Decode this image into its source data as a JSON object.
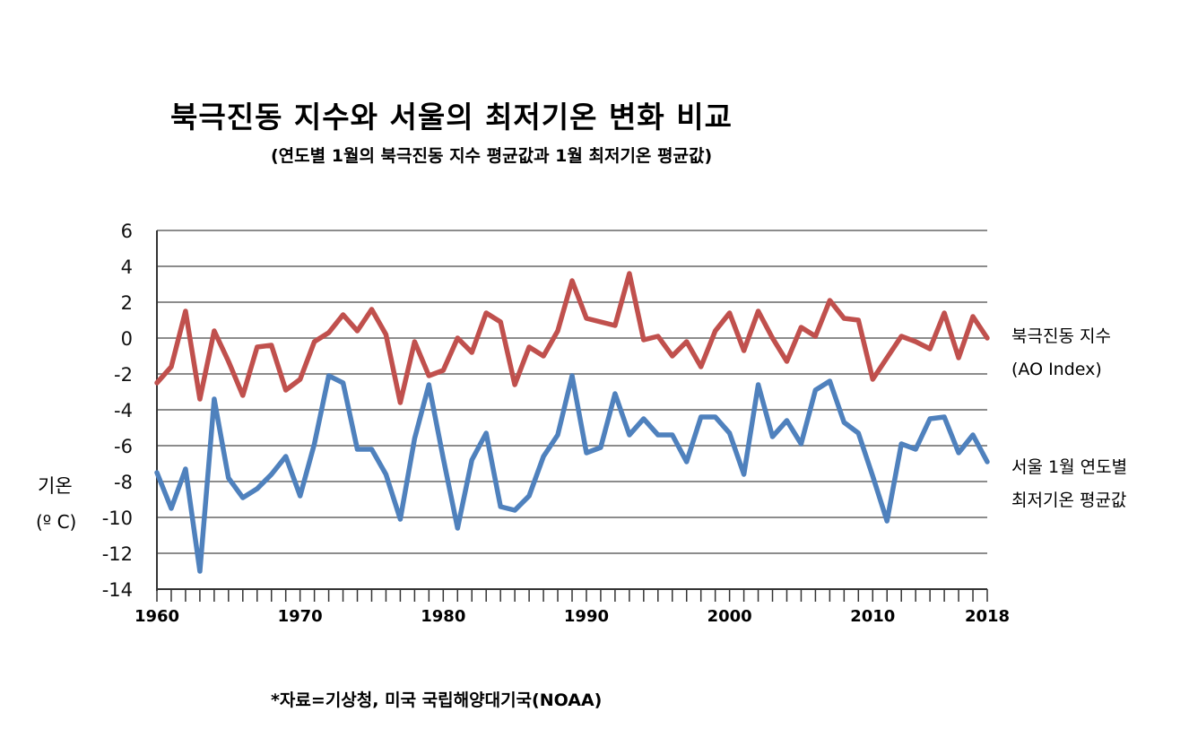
{
  "title": "북극진동 지수와 서울의 최저기온 변화 비교",
  "subtitle": "(연도별 1월의 북극진동 지수 평균값과 1월 최저기온 평균값)",
  "source": "*자료=기상청,  미국 국립해양대기국(NOAA)",
  "chart_data": {
    "type": "line",
    "title": "북극진동 지수와 서울의 최저기온 변화 비교",
    "subtitle": "(연도별 1월의 북극진동 지수 평균값과 1월 최저기온 평균값)",
    "ylabel": "기온",
    "ylabel_unit": "(º C)",
    "ylim": [
      -14,
      6
    ],
    "yticks": [
      6,
      4,
      2,
      0,
      -2,
      -4,
      -6,
      -8,
      -10,
      -12,
      -14
    ],
    "xlim": [
      1960,
      2018
    ],
    "xtick_labels": [
      {
        "x": 1960,
        "label": "1960"
      },
      {
        "x": 1970,
        "label": "1970"
      },
      {
        "x": 1980,
        "label": "1980"
      },
      {
        "x": 1990,
        "label": "1990"
      },
      {
        "x": 2000,
        "label": "2000"
      },
      {
        "x": 2010,
        "label": "2010"
      },
      {
        "x": 2018,
        "label": "2018"
      }
    ],
    "grid": true,
    "legend_position": "right",
    "x": [
      1960,
      1961,
      1962,
      1963,
      1964,
      1965,
      1966,
      1967,
      1968,
      1969,
      1970,
      1971,
      1972,
      1973,
      1974,
      1975,
      1976,
      1977,
      1978,
      1979,
      1980,
      1981,
      1982,
      1983,
      1984,
      1985,
      1986,
      1987,
      1988,
      1989,
      1990,
      1991,
      1992,
      1993,
      1994,
      1995,
      1996,
      1997,
      1998,
      1999,
      2000,
      2001,
      2002,
      2003,
      2004,
      2005,
      2006,
      2007,
      2008,
      2009,
      2010,
      2011,
      2012,
      2013,
      2014,
      2015,
      2016,
      2017,
      2018
    ],
    "series": [
      {
        "name": "북극진동 지수",
        "name_line2": "(AO Index)",
        "color": "#c0504d",
        "values": [
          -2.5,
          -1.6,
          1.5,
          -3.4,
          0.4,
          -1.3,
          -3.2,
          -0.5,
          -0.4,
          -2.9,
          -2.3,
          -0.2,
          0.3,
          1.3,
          0.4,
          1.6,
          0.2,
          -3.6,
          -0.2,
          -2.1,
          -1.8,
          0.0,
          -0.8,
          1.4,
          0.9,
          -2.6,
          -0.5,
          -1.0,
          0.4,
          3.2,
          1.1,
          0.9,
          0.7,
          3.6,
          -0.1,
          0.1,
          -1.0,
          -0.2,
          -1.6,
          0.4,
          1.4,
          -0.7,
          1.5,
          0.0,
          -1.3,
          0.6,
          0.1,
          2.1,
          1.1,
          1.0,
          -2.3,
          -1.1,
          0.1,
          -0.2,
          -0.6,
          1.4,
          -1.1,
          1.2,
          0.0
        ]
      },
      {
        "name": "서울 1월 연도별",
        "name_line2": "최저기온 평균값",
        "color": "#4f81bd",
        "values": [
          -7.5,
          -9.5,
          -7.3,
          -13.0,
          -3.4,
          -7.8,
          -8.9,
          -8.4,
          -7.6,
          -6.6,
          -8.8,
          -5.9,
          -2.1,
          -2.5,
          -6.2,
          -6.2,
          -7.6,
          -10.1,
          -5.6,
          -2.6,
          -6.7,
          -10.6,
          -6.8,
          -5.3,
          -9.4,
          -9.6,
          -8.8,
          -6.6,
          -5.4,
          -2.1,
          -6.4,
          -6.1,
          -3.1,
          -5.4,
          -4.5,
          -5.4,
          -5.4,
          -6.9,
          -4.4,
          -4.4,
          -5.3,
          -7.6,
          -2.6,
          -5.5,
          -4.6,
          -5.9,
          -2.9,
          -2.4,
          -4.7,
          -5.3,
          -7.7,
          -10.2,
          -5.9,
          -6.2,
          -4.5,
          -4.4,
          -6.4,
          -5.4,
          -6.9
        ]
      }
    ]
  }
}
